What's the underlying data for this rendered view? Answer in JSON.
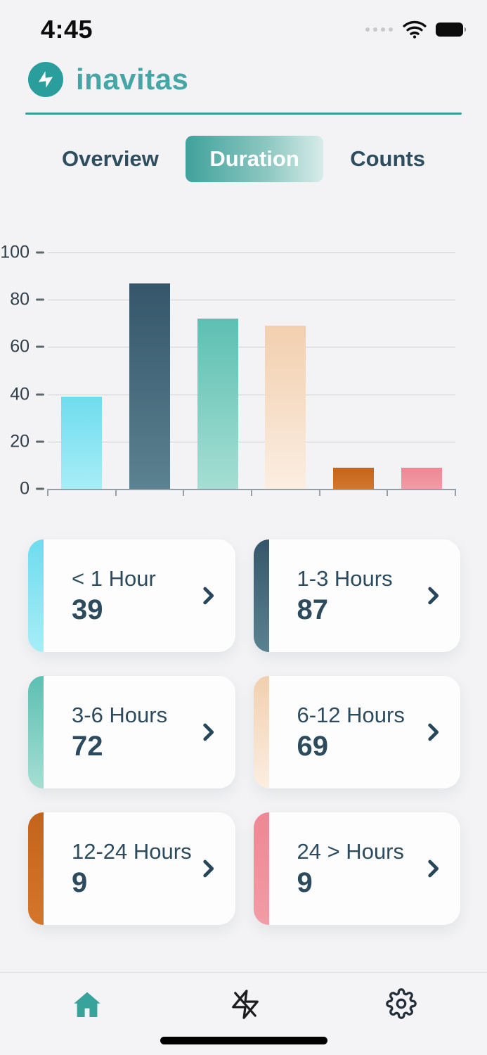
{
  "status_bar": {
    "time": "4:45"
  },
  "header": {
    "brand": "inavitas"
  },
  "tabs": [
    {
      "label": "Overview",
      "active": false
    },
    {
      "label": "Duration",
      "active": true
    },
    {
      "label": "Counts",
      "active": false
    }
  ],
  "chart_data": {
    "type": "bar",
    "title": "",
    "xlabel": "",
    "ylabel": "",
    "categories": [
      "< 1 Hour",
      "1-3 Hours",
      "3-6 Hours",
      "6-12 Hours",
      "12-24 Hours",
      "24 > Hours"
    ],
    "values": [
      39,
      87,
      72,
      69,
      9,
      9
    ],
    "bar_colors_top": [
      "#6edcee",
      "#35566a",
      "#5cc0b2",
      "#f2cfae",
      "#c4641c",
      "#ee8794"
    ],
    "bar_colors_bottom": [
      "#a7edf7",
      "#5b8290",
      "#a5ded3",
      "#fbeee2",
      "#d4762a",
      "#f29ba6"
    ],
    "ylim": [
      0,
      100
    ],
    "yticks": [
      0,
      20,
      40,
      60,
      80,
      100
    ],
    "grid": true,
    "legend": "none"
  },
  "cards": [
    {
      "label": "< 1 Hour",
      "value": "39",
      "color_top": "#6edcee",
      "color_bottom": "#a7edf7"
    },
    {
      "label": "1-3 Hours",
      "value": "87",
      "color_top": "#35566a",
      "color_bottom": "#5b8290"
    },
    {
      "label": "3-6 Hours",
      "value": "72",
      "color_top": "#5cc0b2",
      "color_bottom": "#a5ded3"
    },
    {
      "label": "6-12 Hours",
      "value": "69",
      "color_top": "#f2cfae",
      "color_bottom": "#fbeee2"
    },
    {
      "label": "12-24 Hours",
      "value": "9",
      "color_top": "#c4641c",
      "color_bottom": "#d4762a"
    },
    {
      "label": "24 > Hours",
      "value": "9",
      "color_top": "#ee8794",
      "color_bottom": "#f29ba6"
    }
  ],
  "nav": {
    "items": [
      {
        "name": "home",
        "active": true
      },
      {
        "name": "energy",
        "active": false
      },
      {
        "name": "settings",
        "active": false
      }
    ]
  },
  "colors": {
    "accent_teal": "#3a9c95",
    "brand_text": "#46a6a6",
    "tab_text": "#2e4d5f",
    "card_text": "#2c4b5e",
    "nav_active": "#38a39b",
    "nav_inactive": "#1f2a33"
  }
}
